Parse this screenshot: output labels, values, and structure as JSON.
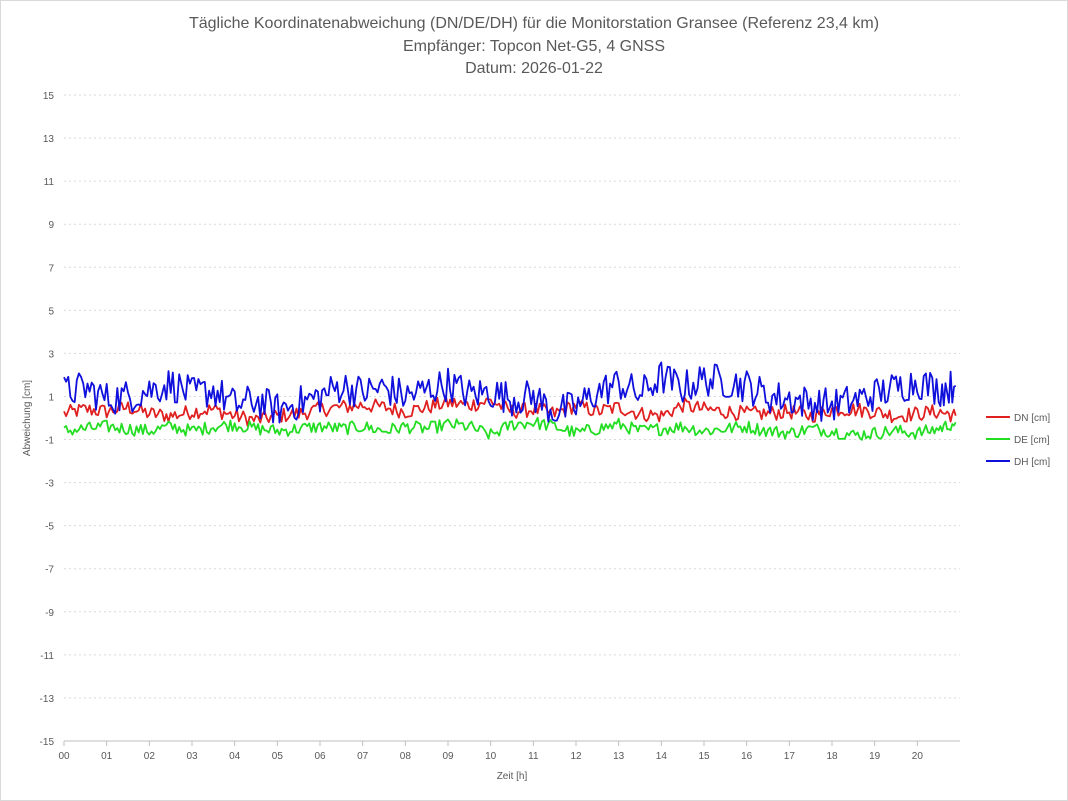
{
  "chart_data": {
    "type": "line",
    "title": "Tägliche Koordinatenabweichung (DN/DE/DH) für die Monitorstation Gransee (Referenz 23,4 km)",
    "subtitle": "Empfänger: Topcon Net-G5, 4 GNSS",
    "date_line": "Datum: 2026-01-22",
    "xlabel": "Zeit [h]",
    "ylabel": "Abweichung [cm]",
    "xlim": [
      0,
      21
    ],
    "ylim": [
      -15,
      15
    ],
    "x_ticks": [
      "00",
      "01",
      "02",
      "03",
      "04",
      "05",
      "06",
      "07",
      "08",
      "09",
      "10",
      "11",
      "12",
      "13",
      "14",
      "15",
      "16",
      "17",
      "18",
      "19",
      "20"
    ],
    "y_ticks": [
      "15",
      "13",
      "11",
      "9",
      "7",
      "5",
      "3",
      "1",
      "-1",
      "-3",
      "-5",
      "-7",
      "-9",
      "-11",
      "-13",
      "-15"
    ],
    "grid": "horizontal-dashed",
    "legend_position": "right",
    "series": [
      {
        "name": "DN [cm]",
        "color": "#e02020",
        "x": [
          0,
          0.5,
          1,
          1.5,
          2,
          2.5,
          3,
          3.5,
          4,
          4.5,
          5,
          5.5,
          6,
          6.5,
          7,
          7.5,
          8,
          8.5,
          9,
          9.5,
          10,
          10.5,
          11,
          11.5,
          12,
          12.5,
          13,
          13.5,
          14,
          14.5,
          15,
          15.5,
          16,
          16.5,
          17,
          17.5,
          18,
          18.5,
          19,
          19.5,
          20,
          20.5,
          20.9
        ],
        "values": [
          0.2,
          0.4,
          0.3,
          0.5,
          0.2,
          0.1,
          0.3,
          0.4,
          0.1,
          -0.1,
          0.1,
          0.2,
          0.4,
          0.5,
          0.6,
          0.5,
          0.3,
          0.5,
          0.7,
          0.6,
          0.8,
          0.3,
          0.4,
          0.2,
          0.6,
          0.3,
          0.5,
          0.2,
          0.1,
          0.6,
          0.4,
          0.3,
          0.2,
          0.2,
          0.3,
          0.1,
          0.4,
          0.4,
          0.3,
          0.1,
          0.2,
          0.3,
          0.1
        ]
      },
      {
        "name": "DE [cm]",
        "color": "#22dd22",
        "x": [
          0,
          0.5,
          1,
          1.5,
          2,
          2.5,
          3,
          3.5,
          4,
          4.5,
          5,
          5.5,
          6,
          6.5,
          7,
          7.5,
          8,
          8.5,
          9,
          9.5,
          10,
          10.5,
          11,
          11.5,
          12,
          12.5,
          13,
          13.5,
          14,
          14.5,
          15,
          15.5,
          16,
          16.5,
          17,
          17.5,
          18,
          18.5,
          19,
          19.5,
          20,
          20.5,
          20.9
        ],
        "values": [
          -0.6,
          -0.5,
          -0.4,
          -0.5,
          -0.6,
          -0.4,
          -0.6,
          -0.4,
          -0.3,
          -0.5,
          -0.6,
          -0.5,
          -0.4,
          -0.5,
          -0.4,
          -0.6,
          -0.4,
          -0.5,
          -0.3,
          -0.4,
          -0.8,
          -0.3,
          -0.2,
          -0.4,
          -0.7,
          -0.5,
          -0.3,
          -0.6,
          -0.5,
          -0.4,
          -0.6,
          -0.5,
          -0.4,
          -0.6,
          -0.7,
          -0.5,
          -0.6,
          -0.8,
          -0.7,
          -0.6,
          -0.7,
          -0.5,
          -0.2
        ]
      },
      {
        "name": "DH [cm]",
        "color": "#1010dd",
        "x": [
          0,
          0.5,
          1,
          1.5,
          2,
          2.5,
          3,
          3.5,
          4,
          4.5,
          5,
          5.5,
          6,
          6.5,
          7,
          7.5,
          8,
          8.5,
          9,
          9.5,
          10,
          10.5,
          11,
          11.5,
          12,
          12.5,
          13,
          13.5,
          14,
          14.5,
          15,
          15.5,
          16,
          16.5,
          17,
          17.5,
          18,
          18.5,
          19,
          19.5,
          20,
          20.5,
          20.9
        ],
        "values": [
          1.2,
          1.4,
          0.9,
          1.0,
          1.3,
          1.6,
          1.1,
          1.3,
          0.6,
          0.8,
          0.4,
          0.7,
          1.0,
          1.5,
          1.2,
          1.4,
          1.0,
          1.3,
          1.6,
          1.1,
          1.2,
          0.9,
          1.0,
          0.3,
          0.5,
          1.2,
          1.6,
          1.1,
          1.9,
          1.4,
          1.8,
          1.7,
          1.5,
          1.0,
          0.9,
          0.7,
          0.6,
          0.8,
          1.1,
          1.4,
          1.7,
          1.3,
          1.5
        ]
      }
    ]
  }
}
